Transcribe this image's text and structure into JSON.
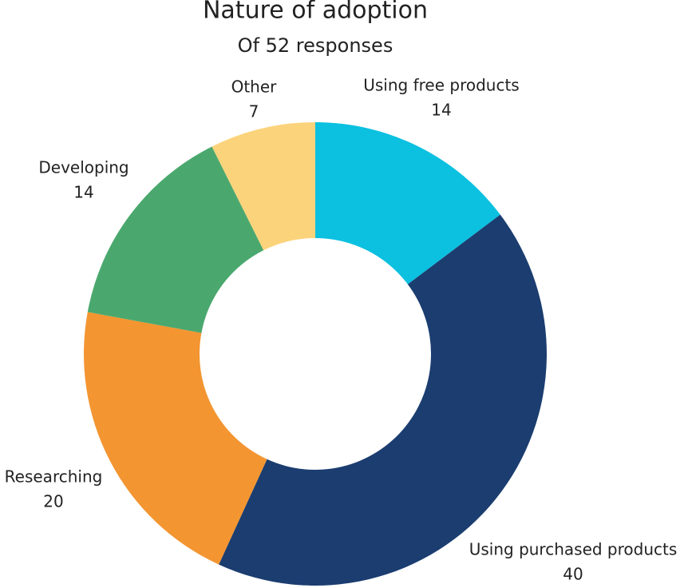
{
  "chart_data": {
    "type": "donut",
    "title": "Nature of adoption",
    "subtitle": "Of 52 responses",
    "categories": [
      "Using free products",
      "Using purchased products",
      "Researching",
      "Developing",
      "Other"
    ],
    "values": [
      14,
      40,
      20,
      14,
      7
    ],
    "colors": [
      "#0cc0e0",
      "#1b3d70",
      "#f39531",
      "#4aa86e",
      "#fbd37b"
    ]
  }
}
